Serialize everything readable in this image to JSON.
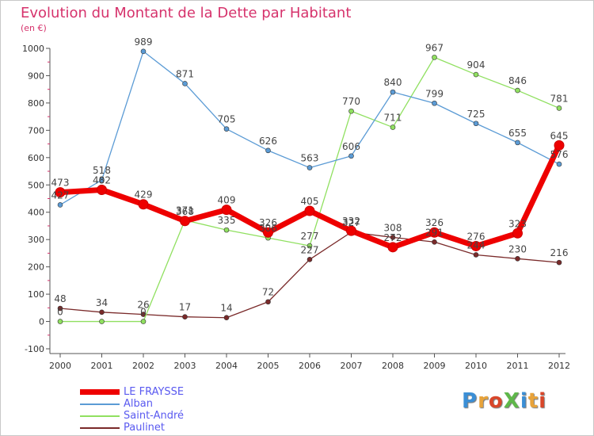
{
  "header": {
    "title": "Evolution du Montant de la Dette par Habitant",
    "unit": "(en €)"
  },
  "logo": {
    "text": "ProXiti",
    "colors": [
      "#3b8fd6",
      "#e8a33a",
      "#d9462a",
      "#5fb84a",
      "#3b8fd6",
      "#e8a33a",
      "#d9462a"
    ]
  },
  "chart_data": {
    "type": "line",
    "title": "Evolution du Montant de la Dette par Habitant",
    "subtitle": "(en €)",
    "x": [
      "2000",
      "2001",
      "2002",
      "2003",
      "2004",
      "2005",
      "2006",
      "2007",
      "2008",
      "2009",
      "2010",
      "2011",
      "2012"
    ],
    "ylim": [
      -100,
      1000
    ],
    "yticks": [
      -100,
      0,
      100,
      200,
      300,
      400,
      500,
      600,
      700,
      800,
      900,
      1000
    ],
    "grid": false,
    "legend_position": "bottom-left",
    "series": [
      {
        "name": "LE FRAYSSE",
        "color": "#ee0000",
        "values": [
          473,
          482,
          429,
          368,
          409,
          326,
          405,
          332,
          272,
          326,
          276,
          323,
          645
        ],
        "labels": [
          "473",
          "482",
          "429",
          "368",
          "409",
          "326",
          "405",
          "332",
          "272",
          "326",
          "276",
          "323",
          "645"
        ]
      },
      {
        "name": "Alban",
        "color": "#5b9bd5",
        "values": [
          427,
          518,
          989,
          871,
          705,
          626,
          563,
          606,
          840,
          799,
          725,
          655,
          576
        ],
        "labels": [
          "427",
          "518",
          "989",
          "871",
          "705",
          "626",
          "563",
          "606",
          "840",
          "799",
          "725",
          "655",
          "576"
        ]
      },
      {
        "name": "Saint-André",
        "color": "#90e060",
        "values": [
          0,
          0,
          0,
          371,
          335,
          306,
          277,
          770,
          711,
          967,
          904,
          846,
          781
        ],
        "labels": [
          "0",
          "",
          "0",
          "371",
          "335",
          "306",
          "277",
          "770",
          "711",
          "967",
          "904",
          "846",
          "781"
        ]
      },
      {
        "name": "Paulinet",
        "color": "#7a2a2a",
        "values": [
          48,
          34,
          26,
          17,
          14,
          72,
          227,
          327,
          308,
          291,
          244,
          230,
          216
        ],
        "labels": [
          "48",
          "34",
          "26",
          "17",
          "14",
          "72",
          "227",
          "327",
          "308",
          "291",
          "244",
          "230",
          "216"
        ]
      }
    ]
  }
}
